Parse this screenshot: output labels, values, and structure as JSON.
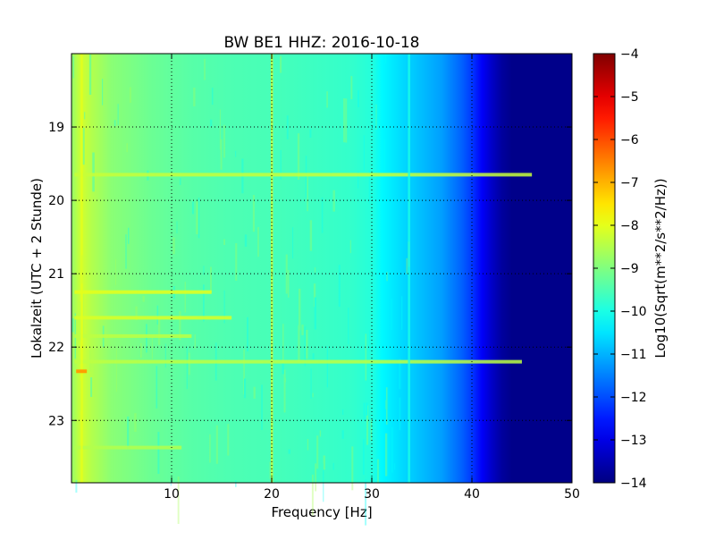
{
  "chart_data": {
    "type": "heatmap",
    "title": "BW BE1 HHZ: 2016-10-18",
    "xlabel": "Frequency [Hz]",
    "ylabel": "Lokalzeit (UTC + 2 Stunde)",
    "xlim": [
      0,
      50
    ],
    "ylim": [
      18.0,
      23.85
    ],
    "y_inverted": true,
    "x_ticks": [
      10,
      20,
      30,
      40,
      50
    ],
    "y_ticks": [
      19,
      20,
      21,
      22,
      23
    ],
    "grid": true,
    "colormap": "jet",
    "colorbar": {
      "label": "Log10(Sqrt(m**2/s**2/Hz))",
      "range": [
        -14,
        -4
      ],
      "ticks": [
        -4,
        -5,
        -6,
        -7,
        -8,
        -9,
        -10,
        -11,
        -12,
        -13,
        -14
      ]
    },
    "spectral_profile": {
      "frequency_hz": [
        0,
        1,
        2,
        4,
        8,
        12,
        16,
        20,
        24,
        28,
        30,
        31,
        33,
        35,
        37,
        39,
        40,
        41,
        42,
        43,
        44,
        50
      ],
      "level": [
        -8.8,
        -8.2,
        -8.5,
        -8.9,
        -9.2,
        -9.4,
        -9.5,
        -9.55,
        -9.65,
        -9.75,
        -9.9,
        -10.3,
        -10.6,
        -10.9,
        -11.2,
        -11.8,
        -12.2,
        -12.8,
        -13.3,
        -13.7,
        -13.9,
        -13.9
      ]
    },
    "features": [
      {
        "kind": "horizontal_band",
        "time": 19.65,
        "f_max": 46,
        "level": -8.3
      },
      {
        "kind": "horizontal_band",
        "time": 22.2,
        "f_max": 45,
        "level": -8.4
      },
      {
        "kind": "horizontal_band",
        "time": 21.25,
        "f_max": 14,
        "level": -8.0
      },
      {
        "kind": "horizontal_band",
        "time": 21.6,
        "f_max": 16,
        "level": -8.1
      },
      {
        "kind": "horizontal_band",
        "time": 21.85,
        "f_max": 12,
        "level": -8.4
      },
      {
        "kind": "horizontal_band",
        "time": 23.37,
        "f_max": 11,
        "level": -8.5
      },
      {
        "kind": "vertical_line",
        "frequency": 20,
        "level": -8.3
      },
      {
        "kind": "vertical_line",
        "frequency": 1,
        "level": -8.0
      },
      {
        "kind": "vertical_line",
        "frequency": 33.7,
        "level": -10.0
      },
      {
        "kind": "spot",
        "time": 22.33,
        "frequency": 1,
        "level": -6.8
      }
    ]
  }
}
